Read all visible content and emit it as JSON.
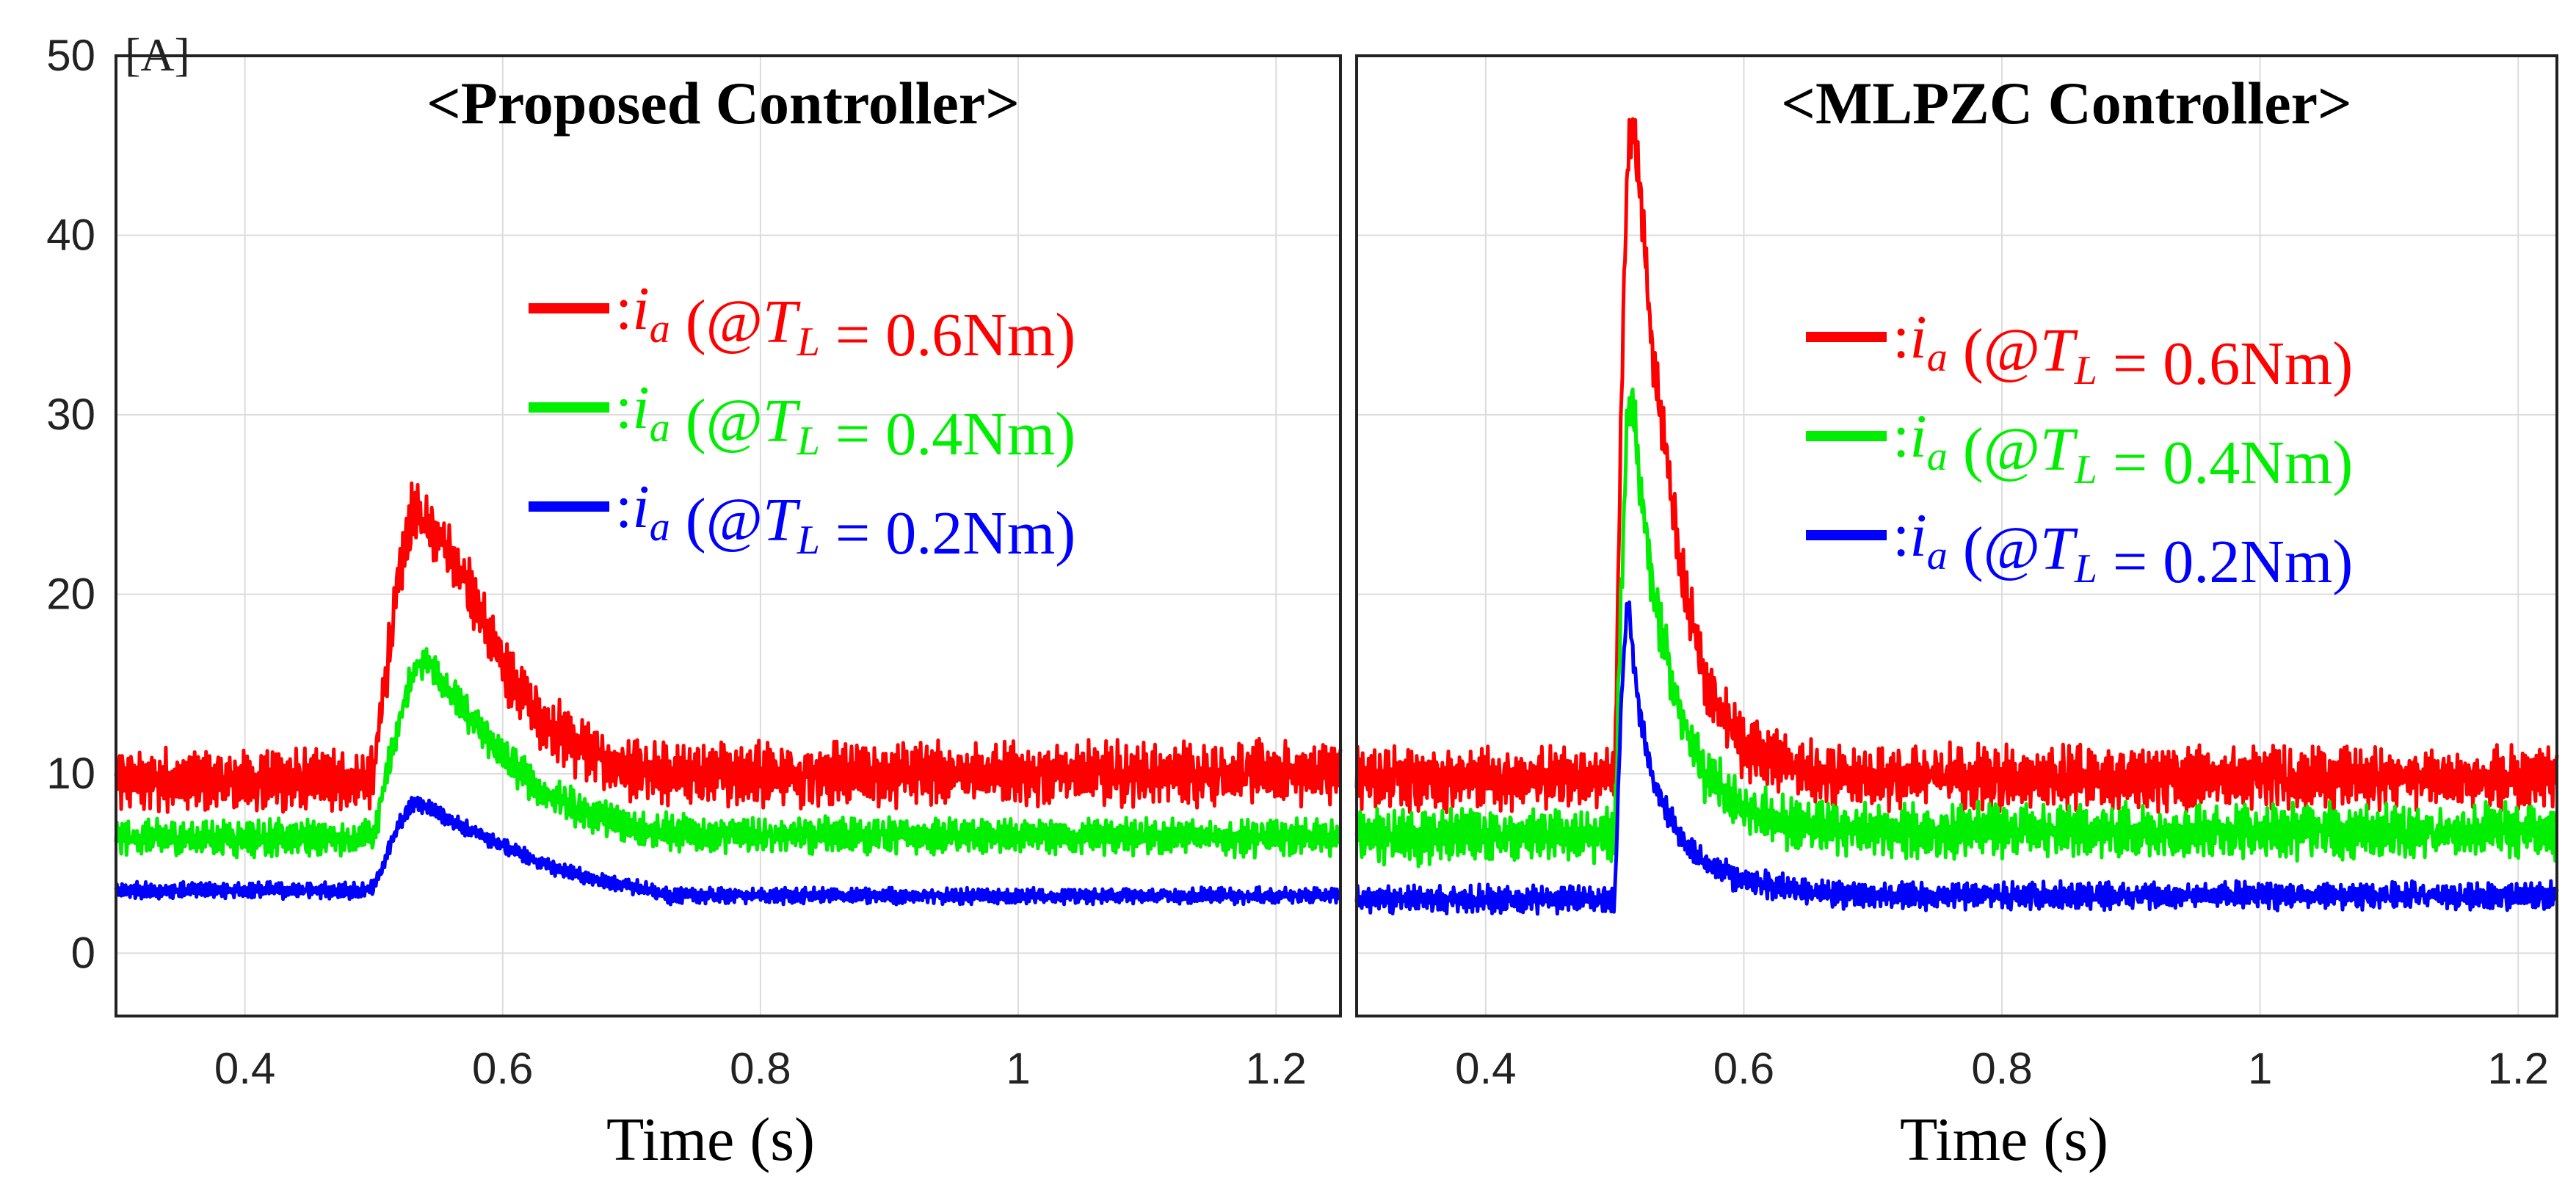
{
  "chart_data": [
    {
      "type": "line",
      "title": "<Proposed Controller>",
      "xlabel": "Time (s)",
      "ylabel_unit": "[A]",
      "xlim": [
        0.3,
        1.25
      ],
      "ylim": [
        -3.5,
        50
      ],
      "xticks": [
        "0.4",
        "0.6",
        "0.8",
        "1",
        "1.2"
      ],
      "xtick_values": [
        0.4,
        0.6,
        0.8,
        1.0,
        1.2
      ],
      "yticks": [
        "0",
        "10",
        "20",
        "30",
        "40",
        "50"
      ],
      "ytick_values": [
        0,
        10,
        20,
        30,
        40,
        50
      ],
      "grid": true,
      "legend_position": "right-center",
      "series": [
        {
          "name": "ia (@TL = 0.6Nm)",
          "color": "#ff0000",
          "x": [
            0.3,
            0.49,
            0.5,
            0.51,
            0.52,
            0.53,
            0.54,
            0.55,
            0.57,
            0.6,
            0.63,
            0.66,
            0.7,
            0.75,
            0.8,
            1.0,
            1.25
          ],
          "y": [
            9.6,
            9.6,
            10.0,
            16.0,
            21.0,
            24.5,
            24.0,
            23.5,
            21.0,
            16.0,
            13.0,
            11.5,
            10.0,
            10.0,
            10.0,
            10.0,
            10.0
          ],
          "ripple": 1.4
        },
        {
          "name": "ia (@TL = 0.4Nm)",
          "color": "#00ee00",
          "x": [
            0.3,
            0.49,
            0.5,
            0.51,
            0.52,
            0.53,
            0.54,
            0.55,
            0.57,
            0.6,
            0.63,
            0.66,
            0.7,
            0.75,
            1.25
          ],
          "y": [
            6.4,
            6.4,
            6.5,
            10.0,
            13.0,
            15.5,
            16.5,
            15.5,
            13.5,
            11.0,
            9.0,
            8.0,
            7.0,
            6.6,
            6.4
          ],
          "ripple": 0.8
        },
        {
          "name": "ia (@TL = 0.2Nm)",
          "color": "#0000ff",
          "x": [
            0.3,
            0.49,
            0.5,
            0.51,
            0.52,
            0.53,
            0.54,
            0.55,
            0.57,
            0.6,
            0.63,
            0.66,
            0.7,
            0.73,
            1.25
          ],
          "y": [
            3.5,
            3.5,
            3.6,
            5.5,
            7.2,
            8.3,
            8.2,
            7.8,
            7.0,
            6.0,
            5.0,
            4.3,
            3.7,
            3.2,
            3.2
          ],
          "ripple": 0.35
        }
      ]
    },
    {
      "type": "line",
      "title": "<MLPZC Controller>",
      "xlabel": "Time (s)",
      "xlim": [
        0.3,
        1.23
      ],
      "ylim": [
        -3.5,
        50
      ],
      "xticks": [
        "0.4",
        "0.6",
        "0.8",
        "1",
        "1.2"
      ],
      "xtick_values": [
        0.4,
        0.6,
        0.8,
        1.0,
        1.2
      ],
      "grid": true,
      "legend_position": "right-center",
      "series": [
        {
          "name": "ia (@TL = 0.6Nm)",
          "color": "#ff0000",
          "x": [
            0.3,
            0.5,
            0.505,
            0.51,
            0.515,
            0.52,
            0.53,
            0.55,
            0.57,
            0.6,
            0.65,
            0.7,
            1.23
          ],
          "y": [
            9.8,
            9.8,
            30.0,
            45.0,
            46.0,
            42.0,
            33.0,
            22.0,
            15.0,
            11.5,
            10.0,
            9.8,
            9.8
          ],
          "ripple": 1.4
        },
        {
          "name": "ia (@TL = 0.4Nm)",
          "color": "#00ee00",
          "x": [
            0.3,
            0.5,
            0.505,
            0.51,
            0.515,
            0.52,
            0.53,
            0.55,
            0.57,
            0.6,
            0.65,
            0.7,
            1.23
          ],
          "y": [
            6.5,
            6.5,
            20.0,
            31.0,
            30.0,
            26.0,
            20.0,
            13.5,
            10.0,
            8.0,
            7.0,
            6.8,
            6.8
          ],
          "ripple": 1.2
        },
        {
          "name": "ia (@TL = 0.2Nm)",
          "color": "#0000ff",
          "x": [
            0.3,
            0.5,
            0.505,
            0.51,
            0.515,
            0.52,
            0.53,
            0.55,
            0.57,
            0.6,
            0.65,
            0.7,
            1.23
          ],
          "y": [
            3.0,
            3.0,
            14.0,
            20.0,
            16.0,
            13.0,
            9.5,
            6.5,
            5.0,
            4.0,
            3.4,
            3.2,
            3.2
          ],
          "ripple": 0.6
        }
      ]
    }
  ],
  "legend_labels": {
    "prefix": ":",
    "var": "i",
    "sub": "a",
    "open": "(@",
    "var2": "T",
    "sub2": "L",
    "eq": " = ",
    "values": [
      "0.6Nm",
      "0.4Nm",
      "0.2Nm"
    ],
    "close": ")"
  }
}
